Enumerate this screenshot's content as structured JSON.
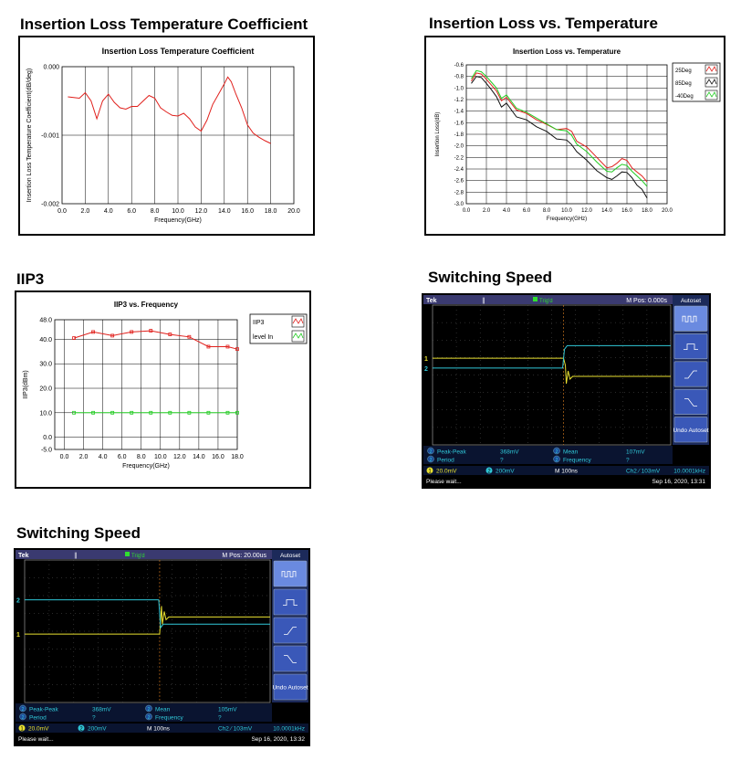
{
  "sections": {
    "il_coef": "Insertion Loss Temperature Coefficient",
    "il_temp": "Insertion Loss vs. Temperature",
    "iip3": "IIP3",
    "sw1": "Switching Speed",
    "sw2": "Switching Speed"
  },
  "colors": {
    "red": "#e0201c",
    "black": "#111111",
    "green": "#22cc22",
    "yellow": "#e8e030",
    "cyan": "#30c8d8"
  },
  "chart_data": [
    {
      "id": "il_coef",
      "type": "line",
      "title": "Insertion Loss Temperature Coefficient",
      "xlabel": "Frequency(GHz)",
      "ylabel": "Insertion Loss Temperature Coefficient(dB/deg)",
      "xlim": [
        0,
        20
      ],
      "ylim": [
        -0.002,
        0
      ],
      "xticks": [
        "0.0",
        "2.0",
        "4.0",
        "6.0",
        "8.0",
        "10.0",
        "12.0",
        "14.0",
        "16.0",
        "18.0",
        "20.0"
      ],
      "yticks": [
        "0.000",
        "-0.001",
        "-0.002"
      ],
      "grid": true,
      "series": [
        {
          "color": "red",
          "x": [
            0.5,
            1.0,
            1.5,
            2.0,
            2.5,
            3.0,
            3.5,
            4.0,
            4.5,
            5.0,
            5.5,
            6.0,
            6.5,
            7.0,
            7.5,
            8.0,
            8.5,
            9.0,
            9.5,
            10.0,
            10.5,
            11.0,
            11.5,
            12.0,
            12.5,
            13.0,
            13.5,
            14.0,
            14.3,
            14.6,
            15.0,
            15.5,
            16.0,
            16.5,
            17.0,
            17.5,
            18.0
          ],
          "y": [
            -0.00044,
            -0.00045,
            -0.00046,
            -0.00038,
            -0.0005,
            -0.00076,
            -0.0005,
            -0.0004,
            -0.00052,
            -0.0006,
            -0.00062,
            -0.00058,
            -0.00058,
            -0.0005,
            -0.00042,
            -0.00046,
            -0.0006,
            -0.00066,
            -0.00071,
            -0.00072,
            -0.00068,
            -0.00076,
            -0.00088,
            -0.00094,
            -0.00078,
            -0.00055,
            -0.0004,
            -0.00025,
            -0.00015,
            -0.00022,
            -0.0004,
            -0.0006,
            -0.00085,
            -0.00097,
            -0.00103,
            -0.00108,
            -0.00112
          ]
        }
      ]
    },
    {
      "id": "il_temp",
      "type": "line",
      "title": "Insertion Loss vs. Temperature",
      "xlabel": "Frequency(GHz)",
      "ylabel": "Insertion Loss(dB)",
      "xlim": [
        0,
        20
      ],
      "ylim": [
        -3.0,
        -0.6
      ],
      "xticks": [
        "0.0",
        "2.0",
        "4.0",
        "6.0",
        "8.0",
        "10.0",
        "12.0",
        "14.0",
        "16.0",
        "18.0",
        "20.0"
      ],
      "yticks": [
        "-0.6",
        "-0.8",
        "-1.0",
        "-1.2",
        "-1.4",
        "-1.6",
        "-1.8",
        "-2.0",
        "-2.2",
        "-2.4",
        "-2.6",
        "-2.8",
        "-3.0"
      ],
      "grid": true,
      "legend_position": "top-right",
      "x": [
        0.5,
        1.0,
        1.5,
        2.0,
        2.5,
        3.0,
        3.5,
        4.0,
        5.0,
        6.0,
        7.0,
        8.0,
        9.0,
        10.0,
        10.5,
        11.0,
        12.0,
        13.0,
        14.0,
        14.5,
        15.0,
        15.5,
        16.0,
        16.5,
        17.0,
        17.5,
        18.0
      ],
      "series": [
        {
          "name": "25Deg",
          "color": "red",
          "y": [
            -0.88,
            -0.74,
            -0.76,
            -0.85,
            -0.95,
            -1.05,
            -1.22,
            -1.16,
            -1.38,
            -1.44,
            -1.55,
            -1.63,
            -1.72,
            -1.7,
            -1.75,
            -1.92,
            -2.02,
            -2.2,
            -2.38,
            -2.36,
            -2.3,
            -2.22,
            -2.25,
            -2.38,
            -2.45,
            -2.52,
            -2.62
          ]
        },
        {
          "name": "85Deg",
          "color": "black",
          "y": [
            -0.92,
            -0.8,
            -0.82,
            -0.92,
            -1.03,
            -1.15,
            -1.33,
            -1.26,
            -1.5,
            -1.55,
            -1.67,
            -1.75,
            -1.88,
            -1.9,
            -1.98,
            -2.1,
            -2.25,
            -2.43,
            -2.55,
            -2.58,
            -2.52,
            -2.45,
            -2.46,
            -2.55,
            -2.68,
            -2.75,
            -2.9
          ]
        },
        {
          "name": "-40Deg",
          "color": "green",
          "y": [
            -0.84,
            -0.7,
            -0.72,
            -0.8,
            -0.9,
            -1.0,
            -1.18,
            -1.12,
            -1.35,
            -1.42,
            -1.52,
            -1.62,
            -1.72,
            -1.74,
            -1.82,
            -1.97,
            -2.1,
            -2.28,
            -2.44,
            -2.45,
            -2.38,
            -2.32,
            -2.34,
            -2.44,
            -2.52,
            -2.6,
            -2.7
          ]
        }
      ]
    },
    {
      "id": "iip3",
      "type": "line",
      "title": "IIP3 vs. Frequency",
      "xlabel": "Frequency(GHz)",
      "ylabel": "IIP3(dBm)",
      "xlim": [
        -1,
        18
      ],
      "ylim": [
        -5,
        48
      ],
      "xticks": [
        "0.0",
        "2.0",
        "4.0",
        "6.0",
        "8.0",
        "10.0",
        "12.0",
        "14.0",
        "16.0",
        "18.0"
      ],
      "yticks": [
        "48.0",
        "40.0",
        "30.0",
        "20.0",
        "10.0",
        "0.0",
        "-5.0"
      ],
      "grid": true,
      "legend_position": "top-right",
      "x": [
        1,
        3,
        5,
        7,
        9,
        11,
        13,
        15,
        17,
        18
      ],
      "series": [
        {
          "name": "IIP3",
          "color": "red",
          "y": [
            40.5,
            43,
            41.5,
            43,
            43.5,
            42,
            41,
            37,
            37,
            36
          ]
        },
        {
          "name": "level In",
          "color": "green",
          "y": [
            10,
            10,
            10,
            10,
            10,
            10,
            10,
            10,
            10,
            10
          ]
        }
      ]
    }
  ],
  "scopes": [
    {
      "brand": "Tek",
      "ch_icon": "∥",
      "trig_status": "Trig'd",
      "mpos": "M Pos: 0.000s",
      "autoset": "Autoset",
      "undo": "Undo Autoset",
      "meas": [
        {
          "ch": "2",
          "label": "Peak-Peak",
          "value": "368mV"
        },
        {
          "ch": "2",
          "label": "Period",
          "value": "?"
        },
        {
          "ch": "2",
          "label": "Mean",
          "value": "107mV"
        },
        {
          "ch": "2",
          "label": "Frequency",
          "value": "?"
        }
      ],
      "ch1_scale": "20.0mV",
      "ch2_scale": "200mV",
      "timebase": "M 100ns",
      "trigger": "Ch2 ∕ 103mV",
      "freq": "10.0001kHz",
      "status": "Please wait...",
      "date": "Sep 16, 2020, 13:31",
      "yellow_level": [
        0.38,
        0.51
      ],
      "cyan_level": [
        0.45,
        0.29
      ],
      "edge_x": 0.55
    },
    {
      "brand": "Tek",
      "ch_icon": "∥",
      "trig_status": "Trig'd",
      "mpos": "M Pos: 20.00us",
      "autoset": "Autoset",
      "undo": "Undo Autoset",
      "meas": [
        {
          "ch": "2",
          "label": "Peak-Peak",
          "value": "368mV"
        },
        {
          "ch": "2",
          "label": "Period",
          "value": "?"
        },
        {
          "ch": "2",
          "label": "Mean",
          "value": "105mV"
        },
        {
          "ch": "2",
          "label": "Frequency",
          "value": "?"
        }
      ],
      "ch1_scale": "20.0mV",
      "ch2_scale": "200mV",
      "timebase": "M 100ns",
      "trigger": "Ch2 ∕ 103mV",
      "freq": "10.0001kHz",
      "status": "Please wait...",
      "date": "Sep 16, 2020, 13:32",
      "yellow_level": [
        0.52,
        0.4
      ],
      "cyan_level": [
        0.28,
        0.45
      ],
      "edge_x": 0.55
    }
  ]
}
